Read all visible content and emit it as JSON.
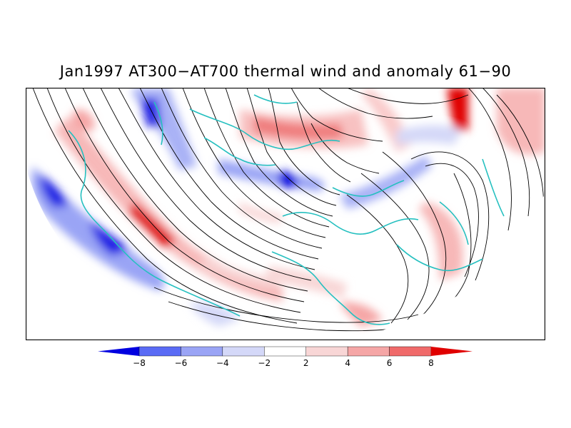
{
  "title": "Jan1997 AT300−AT700 thermal wind and anomaly 61−90",
  "legend": {
    "ticks": [
      "−8",
      "−6",
      "−4",
      "−2",
      "2",
      "4",
      "6",
      "8"
    ],
    "colors": [
      "#0000e0",
      "#5a6bf5",
      "#9aa4f5",
      "#d4d8f8",
      "#ffffff",
      "#f8d6d6",
      "#f5a6a6",
      "#f06a6a",
      "#e00000"
    ]
  },
  "colors": {
    "coastline": "#26c0c0",
    "streamline": "#000000",
    "frame": "#000000",
    "background": "#ffffff"
  }
}
